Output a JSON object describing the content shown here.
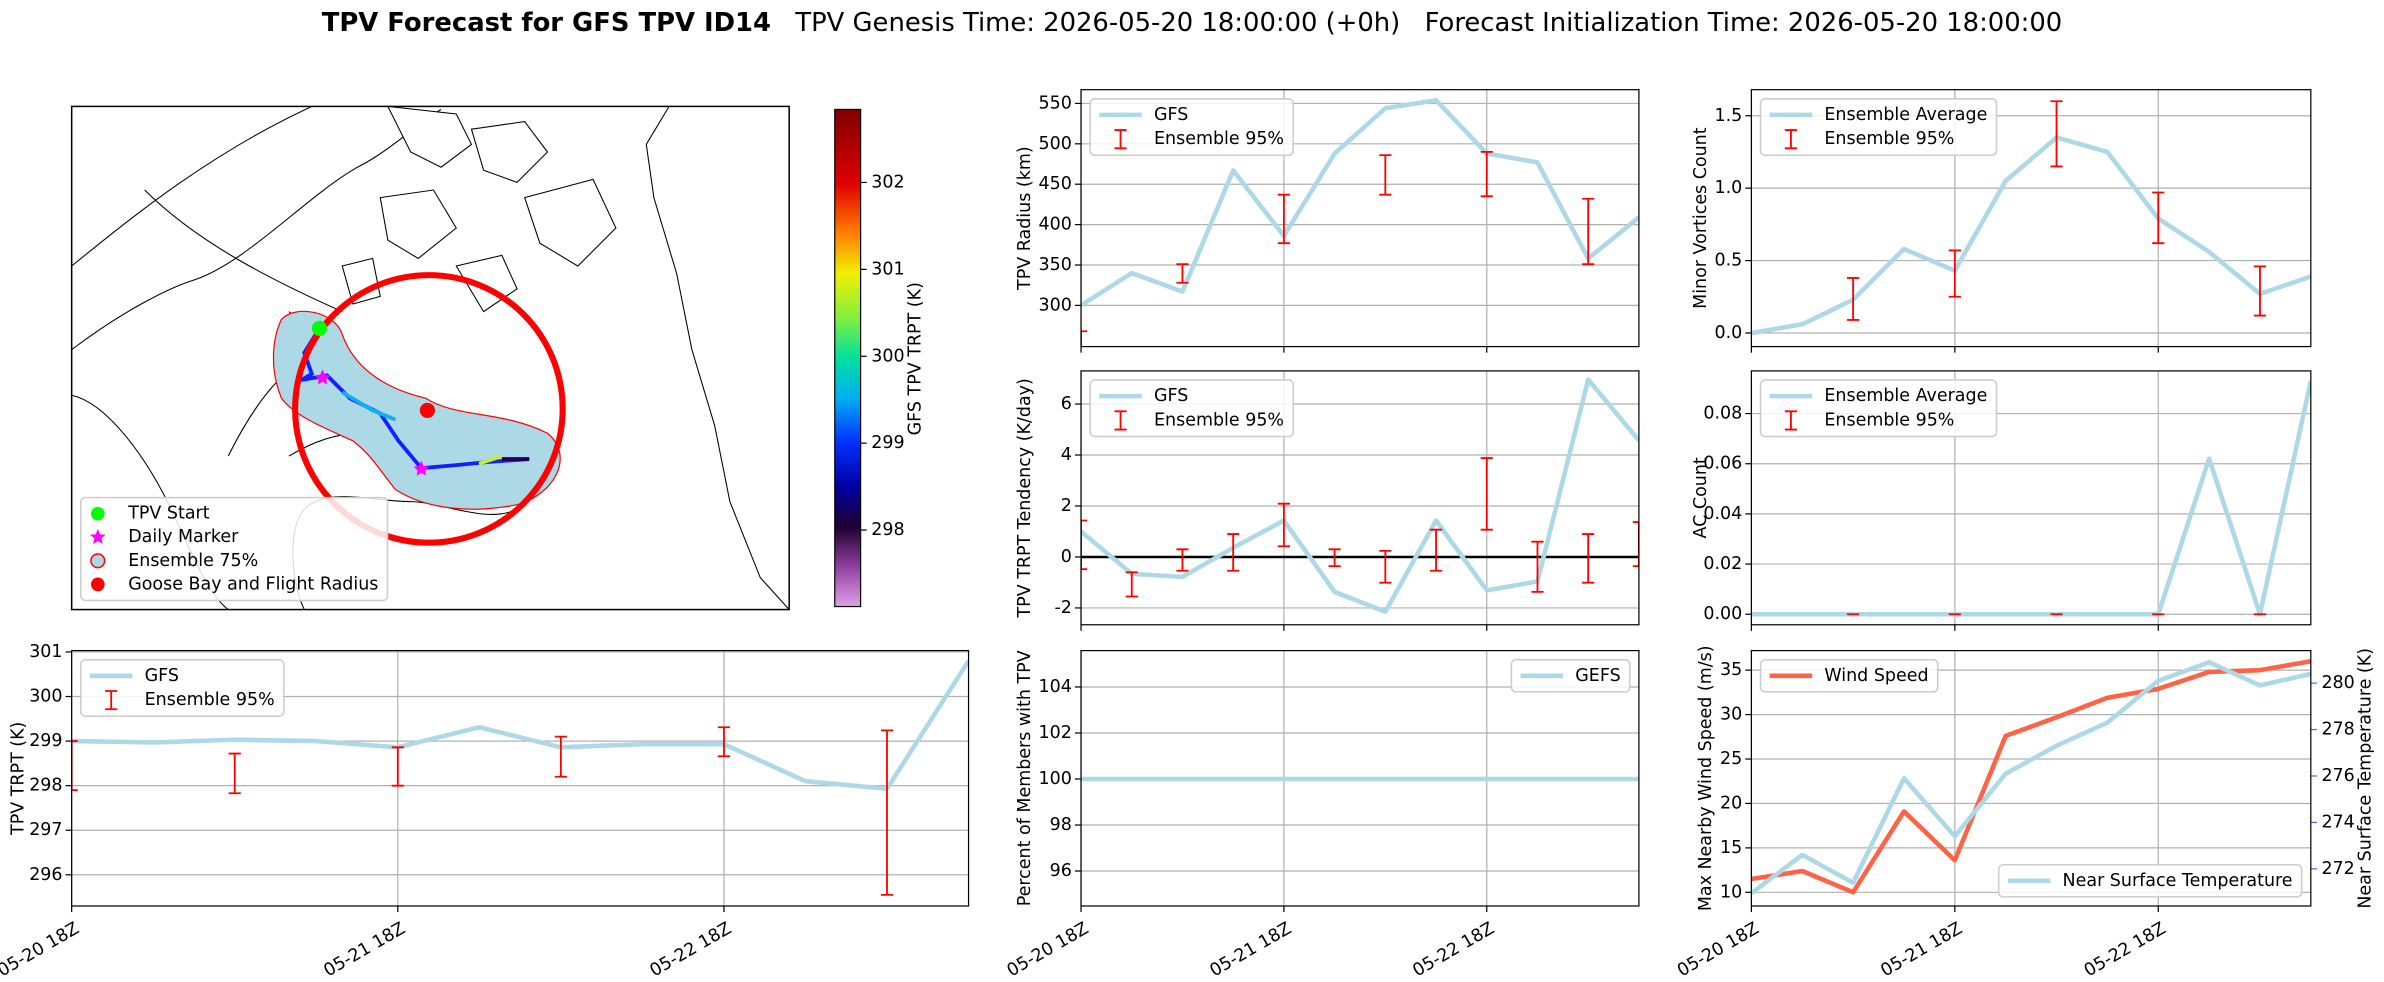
{
  "suptitle": {
    "main": "TPV Forecast for GFS TPV ID14",
    "parts": [
      "TPV Genesis Time: 2026-05-20 18:00:00 (+0h)",
      "Forecast Initialization Time: 2026-05-20 18:00:00"
    ]
  },
  "chart_data": [
    {
      "type": "map",
      "legend": "lower left",
      "legend_entries": [
        {
          "name": "TPV Start",
          "color": "lime"
        },
        {
          "name": "Daily Marker",
          "color": "magenta"
        },
        {
          "name": "Ensemble 75%",
          "color": "#add8e6"
        },
        {
          "name": "Goose Bay and Flight Radius",
          "color": "red"
        }
      ],
      "colorbar": {
        "label": "GFS TPV TRPT (K)",
        "ylim": [
          297.12,
          302.84
        ],
        "yticks": [
          298,
          299,
          300,
          301,
          302
        ]
      }
    },
    {
      "type": "line",
      "ylabel": "TPV Radius (km)",
      "grid": true,
      "legend": "upper left",
      "x": [
        0,
        6,
        12,
        18,
        24,
        30,
        36,
        42,
        48,
        54,
        60,
        66
      ],
      "xlim": [
        0,
        66
      ],
      "xticks": [
        0,
        24,
        48
      ],
      "ylim": [
        249,
        567
      ],
      "yticks": [
        300,
        350,
        400,
        450,
        500,
        550
      ],
      "series": [
        {
          "name": "GFS",
          "color": "#add8e6",
          "values": [
            300,
            340,
            317,
            467,
            386,
            488,
            544,
            554,
            488,
            477,
            358,
            409
          ]
        },
        {
          "name": "Ensemble 95%",
          "color": "red",
          "type": "errorbar",
          "x": [
            0,
            12,
            24,
            36,
            48,
            60
          ],
          "low": [
            245,
            328,
            377,
            437,
            435,
            351
          ],
          "high": [
            268,
            351,
            437,
            486,
            490,
            432
          ]
        }
      ]
    },
    {
      "type": "line",
      "ylabel": "TPV TRPT Tendency (K/day)",
      "grid": true,
      "legend": "upper left",
      "hlines": [
        0
      ],
      "x": [
        0,
        6,
        12,
        18,
        24,
        30,
        36,
        42,
        48,
        54,
        60,
        66
      ],
      "xlim": [
        0,
        66
      ],
      "xticks": [
        0,
        24,
        48
      ],
      "ylim": [
        -2.66,
        7.3
      ],
      "yticks": [
        -2,
        0,
        2,
        4,
        6
      ],
      "series": [
        {
          "name": "GFS",
          "color": "#add8e6",
          "values": [
            1.0,
            -0.66,
            -0.78,
            0.36,
            1.43,
            -1.37,
            -2.15,
            1.43,
            -1.31,
            -0.96,
            6.96,
            4.57
          ]
        },
        {
          "name": "Ensemble 95%",
          "color": "red",
          "type": "errorbar",
          "x": [
            0,
            6,
            12,
            18,
            24,
            30,
            36,
            42,
            48,
            54,
            60,
            66
          ],
          "low": [
            -0.48,
            -1.55,
            -0.54,
            -0.54,
            0.42,
            -0.36,
            -1.01,
            -0.54,
            1.07,
            -1.37,
            -1.01,
            -0.36
          ],
          "high": [
            1.43,
            -0.6,
            0.3,
            0.9,
            2.09,
            0.3,
            0.24,
            1.07,
            3.88,
            0.6,
            0.9,
            1.37
          ]
        }
      ]
    },
    {
      "type": "line",
      "ylabel": "Percent of Members with TPV",
      "grid": true,
      "legend": "upper right",
      "x": [
        0,
        6,
        12,
        18,
        24,
        30,
        36,
        42,
        48,
        54,
        60,
        66
      ],
      "xlim": [
        0,
        66
      ],
      "xticks": [
        {
          "value": 0,
          "label": "05-20 18Z"
        },
        {
          "value": 24,
          "label": "05-21 18Z"
        },
        {
          "value": 48,
          "label": "05-22 18Z"
        }
      ],
      "ylim": [
        94.48,
        105.58
      ],
      "yticks": [
        96,
        98,
        100,
        102,
        104
      ],
      "series": [
        {
          "name": "GEFS",
          "color": "#add8e6",
          "values": [
            100,
            100,
            100,
            100,
            100,
            100,
            100,
            100,
            100,
            100,
            100,
            100
          ]
        }
      ]
    },
    {
      "type": "line",
      "ylabel": "Minor Vortices Count",
      "grid": true,
      "legend": "upper left",
      "x": [
        0,
        6,
        12,
        18,
        24,
        30,
        36,
        42,
        48,
        54,
        60,
        66
      ],
      "xlim": [
        0,
        66
      ],
      "xticks": [
        0,
        24,
        48
      ],
      "ylim": [
        -0.094,
        1.68
      ],
      "yticks": [
        {
          "value": 0,
          "label": "0.0"
        },
        0.5,
        {
          "value": 1,
          "label": "1.0"
        },
        1.5
      ],
      "series": [
        {
          "name": "Ensemble Average",
          "color": "#add8e6",
          "values": [
            0,
            0.06,
            0.23,
            0.58,
            0.43,
            1.05,
            1.35,
            1.25,
            0.79,
            0.56,
            0.27,
            0.39
          ]
        },
        {
          "name": "Ensemble 95%",
          "color": "red",
          "type": "errorbar",
          "x": [
            12,
            24,
            36,
            48,
            60
          ],
          "low": [
            0.09,
            0.25,
            1.15,
            0.62,
            0.12
          ],
          "high": [
            0.38,
            0.57,
            1.6,
            0.97,
            0.46
          ]
        }
      ]
    },
    {
      "type": "line",
      "ylabel": "AC Count",
      "grid": true,
      "legend": "upper left",
      "x": [
        0,
        6,
        12,
        18,
        24,
        30,
        36,
        42,
        48,
        54,
        60,
        66
      ],
      "xlim": [
        0,
        66
      ],
      "xticks": [
        0,
        24,
        48
      ],
      "ylim": [
        -0.0042,
        0.097
      ],
      "yticks": [
        {
          "value": 0,
          "label": "0.00"
        },
        0.02,
        0.04,
        0.06,
        0.08
      ],
      "series": [
        {
          "name": "Ensemble Average",
          "color": "#add8e6",
          "values": [
            0,
            0,
            0,
            0,
            0,
            0,
            0,
            0,
            0,
            0.062,
            0,
            0.093
          ]
        },
        {
          "name": "Ensemble 95%",
          "color": "red",
          "type": "errorbar",
          "x": [
            12,
            24,
            36,
            48,
            60
          ],
          "low": [
            0,
            0,
            0,
            0,
            0
          ],
          "high": [
            0,
            0,
            0,
            0,
            0
          ]
        }
      ]
    },
    {
      "type": "line",
      "ylabel": "Max Nearby Wind Speed (m/s)",
      "ylabel_color": "tomato",
      "y2label": "Near Surface Temperature (K)",
      "y2_color": "royalblue",
      "grid": true,
      "legend": "upper left",
      "x": [
        0,
        6,
        12,
        18,
        24,
        30,
        36,
        42,
        48,
        54,
        60,
        66
      ],
      "xlim": [
        0,
        66
      ],
      "xticks": [
        {
          "value": 0,
          "label": "05-20 18Z"
        },
        {
          "value": 24,
          "label": "05-21 18Z"
        },
        {
          "value": 48,
          "label": "05-22 18Z"
        }
      ],
      "ylim": [
        8.46,
        37.2
      ],
      "yticks": [
        10,
        15,
        20,
        25,
        30,
        35
      ],
      "y2lim": [
        270.4,
        281.4
      ],
      "y2ticks": [
        272,
        274,
        276,
        278,
        280
      ],
      "series": [
        {
          "name": "Wind Speed",
          "color": "tomato",
          "values": [
            11.5,
            12.4,
            10,
            19.1,
            13.6,
            27.6,
            29.7,
            31.9,
            32.9,
            34.8,
            35,
            36
          ]
        },
        {
          "name": "Near Surface Temperature",
          "color": "#add8e6",
          "axis": "y2",
          "legend": "lower right",
          "values": [
            270.95,
            272.6,
            271.4,
            275.9,
            273.4,
            276.1,
            277.3,
            278.3,
            280.1,
            280.9,
            279.9,
            280.4
          ]
        }
      ]
    },
    {
      "type": "line",
      "ylabel": "TPV TRPT (K)",
      "grid": true,
      "legend": "upper left",
      "x": [
        0,
        6,
        12,
        18,
        24,
        30,
        36,
        42,
        48,
        54,
        60,
        66
      ],
      "xlim": [
        0,
        66
      ],
      "xticks": [
        {
          "value": 0,
          "label": "05-20 18Z"
        },
        {
          "value": 24,
          "label": "05-21 18Z"
        },
        {
          "value": 48,
          "label": "05-22 18Z"
        }
      ],
      "ylim": [
        295.3,
        301.03
      ],
      "yticks": [
        296,
        297,
        298,
        299,
        300,
        301
      ],
      "series": [
        {
          "name": "GFS",
          "color": "#add8e6",
          "values": [
            299.0,
            298.97,
            299.03,
            299.0,
            298.86,
            299.31,
            298.86,
            298.93,
            298.93,
            298.1,
            297.93,
            300.8
          ]
        },
        {
          "name": "Ensemble 95%",
          "color": "red",
          "type": "errorbar",
          "x": [
            0,
            12,
            24,
            36,
            48,
            60
          ],
          "low": [
            297.9,
            297.83,
            298.0,
            298.2,
            298.66,
            295.55
          ],
          "high": [
            299.0,
            298.72,
            298.86,
            299.1,
            299.31,
            299.24
          ]
        }
      ]
    }
  ]
}
